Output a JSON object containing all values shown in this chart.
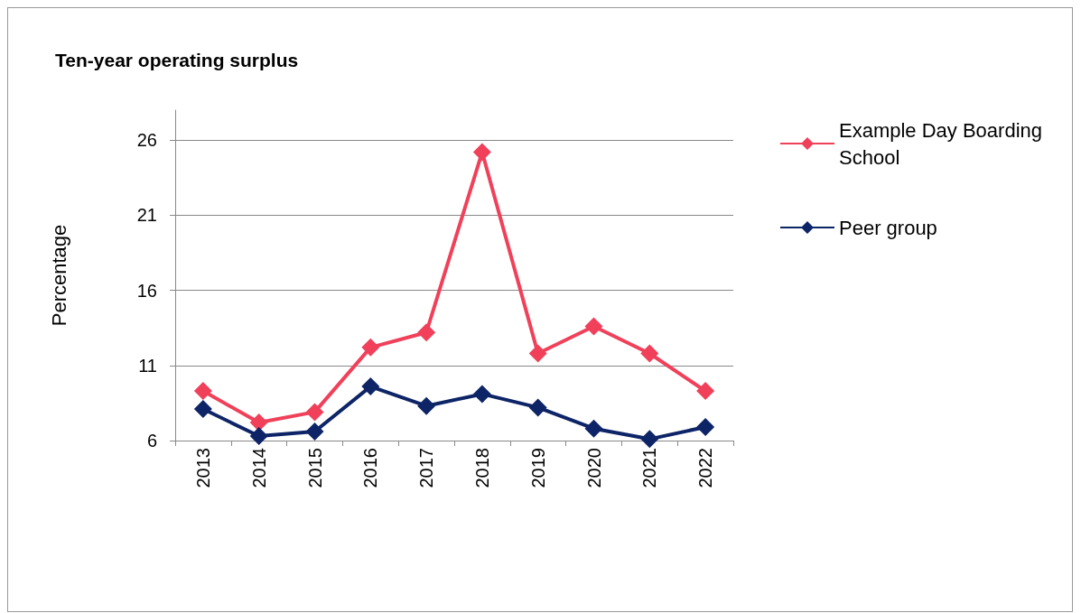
{
  "chart_data": {
    "type": "line",
    "title": "Ten-year operating surplus",
    "ylabel": "Percentage",
    "categories": [
      "2013",
      "2014",
      "2015",
      "2016",
      "2017",
      "2018",
      "2019",
      "2020",
      "2021",
      "2022"
    ],
    "series": [
      {
        "name": "Example Day Boarding School",
        "color": "#f0405a",
        "values": [
          9.3,
          7.2,
          7.9,
          12.2,
          13.2,
          25.2,
          11.8,
          13.6,
          11.8,
          9.3
        ]
      },
      {
        "name": "Peer group",
        "color": "#0d2467",
        "values": [
          8.1,
          6.3,
          6.6,
          9.6,
          8.3,
          9.1,
          8.2,
          6.8,
          6.1,
          6.9
        ]
      }
    ],
    "ylim": [
      6,
      28
    ],
    "yticks": [
      6,
      11,
      16,
      21,
      26
    ],
    "grid": "y",
    "legend": "right",
    "marker": "diamond",
    "line_style": "solid"
  }
}
